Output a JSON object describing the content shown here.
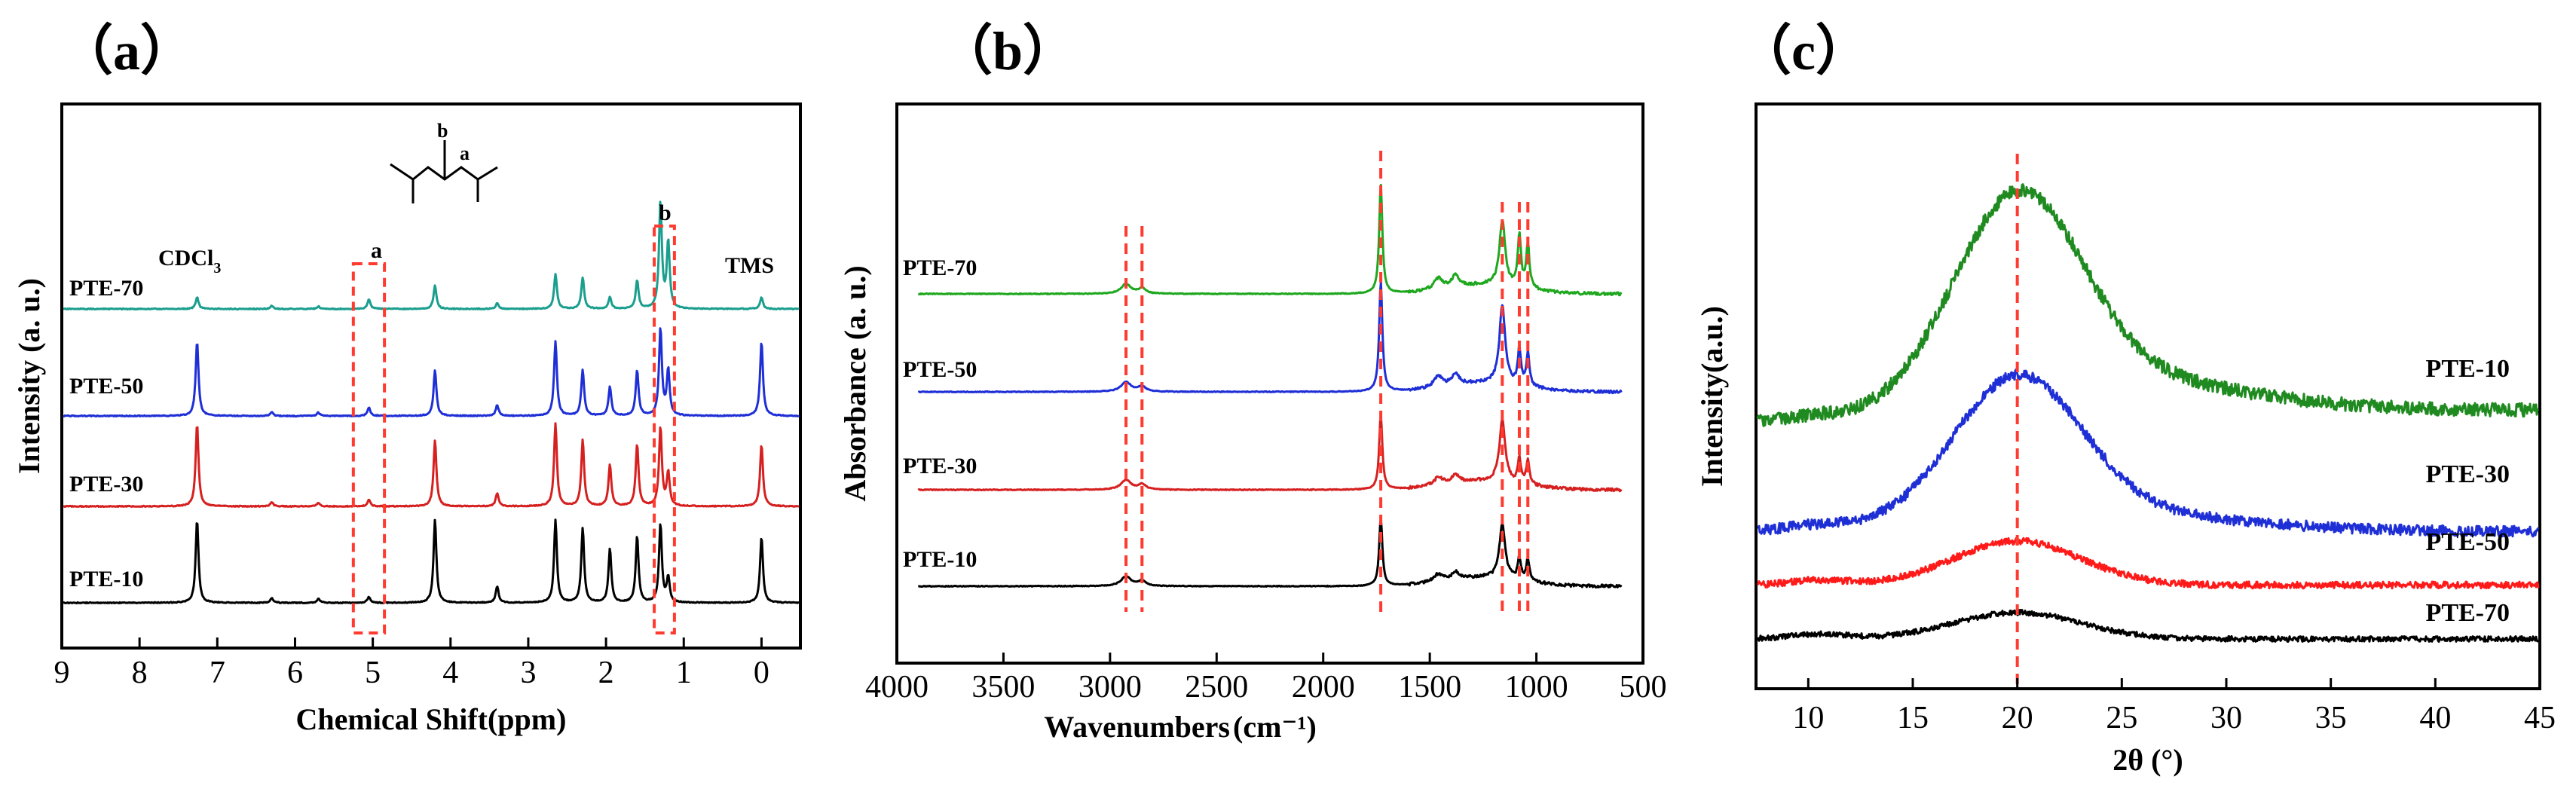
{
  "chart_data": [
    {
      "type": "line",
      "panel_label": "（a）",
      "title": "",
      "xlabel": "Chemical Shift(ppm)",
      "ylabel": "Intensity (a. u.)",
      "xlim": [
        9,
        -0.5
      ],
      "x_ticks": [
        "9",
        "8",
        "7",
        "6",
        "5",
        "4",
        "3",
        "2",
        "1",
        "0"
      ],
      "x_tick_values": [
        9,
        8,
        7,
        6,
        5,
        4,
        3,
        2,
        1,
        0
      ],
      "peak_positions_ppm": [
        7.26,
        6.3,
        5.7,
        5.05,
        4.2,
        3.4,
        2.65,
        2.3,
        1.95,
        1.6,
        1.3,
        1.2,
        0.0
      ],
      "series": [
        {
          "name": "PTE-70",
          "color": "#1a9e8e",
          "baseline_offset": 3,
          "peak_heights": [
            0.14,
            0.04,
            0.03,
            0.12,
            0.28,
            0.07,
            0.42,
            0.38,
            0.14,
            0.34,
            1.28,
            0.8,
            0.14
          ]
        },
        {
          "name": "PTE-50",
          "color": "#1f2fd6",
          "baseline_offset": 2,
          "peak_heights": [
            0.9,
            0.05,
            0.04,
            0.1,
            0.55,
            0.13,
            0.9,
            0.55,
            0.35,
            0.55,
            1.05,
            0.55,
            0.9
          ]
        },
        {
          "name": "PTE-30",
          "color": "#d62020",
          "baseline_offset": 1,
          "peak_heights": [
            1.0,
            0.05,
            0.04,
            0.08,
            0.8,
            0.16,
            1.0,
            0.8,
            0.5,
            0.75,
            0.95,
            0.4,
            0.75
          ]
        },
        {
          "name": "PTE-10",
          "color": "#000000",
          "baseline_offset": 0,
          "peak_heights": [
            1.0,
            0.06,
            0.05,
            0.07,
            1.0,
            0.2,
            1.0,
            0.9,
            0.65,
            0.8,
            0.95,
            0.3,
            0.8
          ]
        }
      ],
      "annotations": {
        "solvent": "CDCl",
        "solvent_subscript": "3",
        "reference": "TMS",
        "label_a": "a",
        "label_b": "b",
        "struct_a": "a",
        "struct_b": "b"
      },
      "highlight_boxes_ppm": [
        [
          5.25,
          4.85
        ],
        [
          1.38,
          1.12
        ]
      ]
    },
    {
      "type": "line",
      "panel_label": "（b）",
      "title": "",
      "xlabel": "Wavenumbers",
      "xlabel_unit": "(cm⁻¹)",
      "ylabel": "Absorbance (a. u.)",
      "xlim": [
        4000,
        500
      ],
      "x_ticks": [
        "4000",
        "3500",
        "3000",
        "2500",
        "2000",
        "1500",
        "1000",
        "500"
      ],
      "x_tick_values": [
        4000,
        3500,
        3000,
        2500,
        2000,
        1500,
        1000,
        500
      ],
      "trace_range": [
        3900,
        600
      ],
      "peak_positions_cm": [
        2925,
        2850,
        1730,
        1460,
        1380,
        1160,
        1080,
        1040
      ],
      "guide_lines_cm": [
        2925,
        2850,
        1730,
        1160,
        1080,
        1040
      ],
      "series": [
        {
          "name": "PTE-70",
          "color": "#1fa81f",
          "baseline_offset": 3,
          "peak_heights": [
            0.09,
            0.05,
            1.0,
            0.1,
            0.1,
            0.6,
            0.48,
            0.4
          ]
        },
        {
          "name": "PTE-50",
          "color": "#1f2fd6",
          "baseline_offset": 2,
          "peak_heights": [
            0.09,
            0.05,
            1.0,
            0.1,
            0.1,
            0.72,
            0.32,
            0.3
          ]
        },
        {
          "name": "PTE-30",
          "color": "#d62020",
          "baseline_offset": 1,
          "peak_heights": [
            0.09,
            0.05,
            0.68,
            0.07,
            0.07,
            0.58,
            0.22,
            0.22
          ]
        },
        {
          "name": "PTE-10",
          "color": "#000000",
          "baseline_offset": 0,
          "peak_heights": [
            0.09,
            0.05,
            0.62,
            0.07,
            0.07,
            0.5,
            0.2,
            0.2
          ]
        }
      ]
    },
    {
      "type": "line",
      "panel_label": "（c）",
      "title": "",
      "xlabel": "2θ (°)",
      "ylabel": "Intensity(a.u.)",
      "xlim": [
        7.5,
        45
      ],
      "x_ticks": [
        "10",
        "15",
        "20",
        "25",
        "30",
        "35",
        "40",
        "45"
      ],
      "x_tick_values": [
        10,
        15,
        20,
        25,
        30,
        35,
        40,
        45
      ],
      "guide_line_2theta": 20,
      "series": [
        {
          "name": "PTE-10",
          "color": "#1f8a1f",
          "baseline": 2.2,
          "peak_height": 2.0,
          "tail": 0.55
        },
        {
          "name": "PTE-30",
          "color": "#1f2fd6",
          "baseline": 1.1,
          "peak_height": 1.45,
          "tail": 0.3
        },
        {
          "name": "PTE-50",
          "color": "#ff1a1a",
          "baseline": 0.55,
          "peak_height": 0.45,
          "tail": 0.0
        },
        {
          "name": "PTE-70",
          "color": "#000000",
          "baseline": 0.0,
          "peak_height": 0.27,
          "tail": 0.0
        }
      ]
    }
  ]
}
